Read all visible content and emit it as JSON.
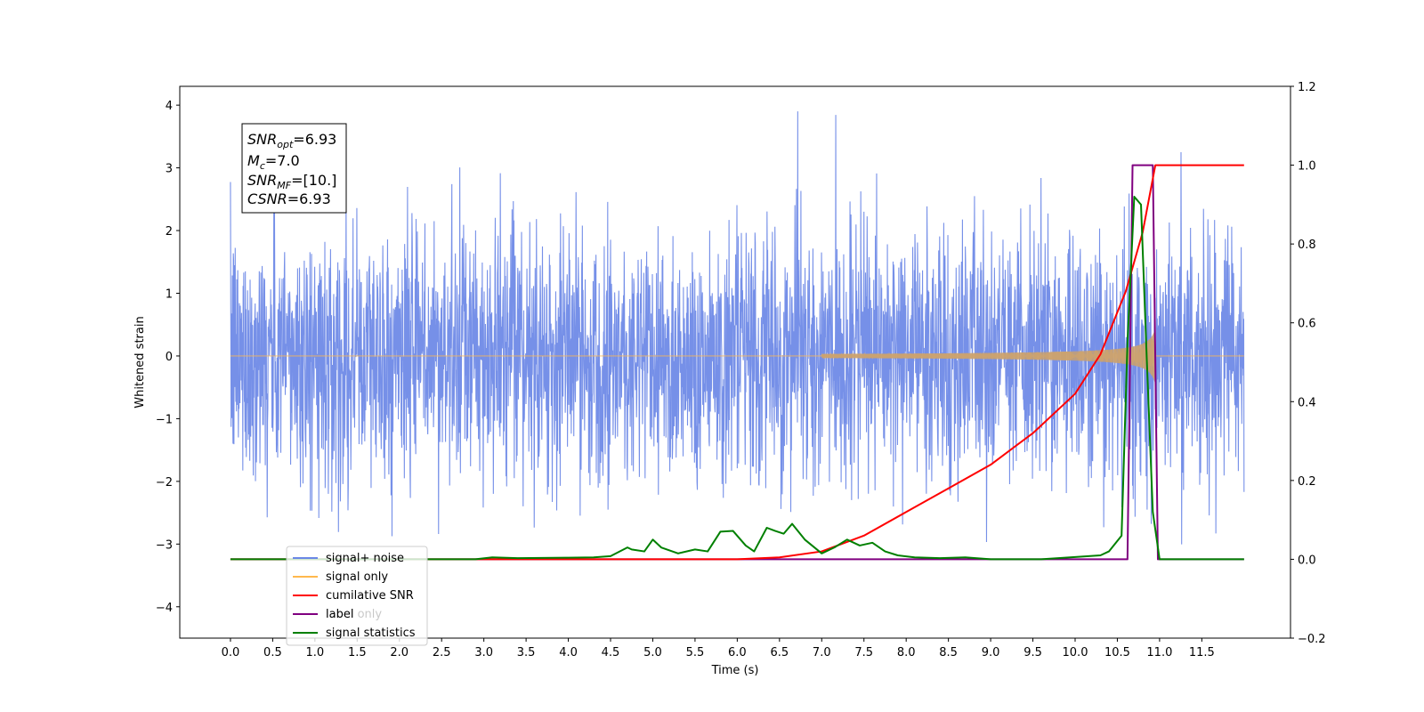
{
  "chart_data": {
    "type": "line",
    "xlabel": "Time (s)",
    "ylabel": "Whitened strain",
    "xlim": [
      -0.6,
      12.55
    ],
    "ylim": [
      -4.5,
      4.3
    ],
    "y2lim": [
      -0.2,
      1.2
    ],
    "x_ticks": [
      "0.0",
      "0.5",
      "1.0",
      "1.5",
      "2.0",
      "2.5",
      "3.0",
      "3.5",
      "4.0",
      "4.5",
      "5.0",
      "5.5",
      "6.0",
      "6.5",
      "7.0",
      "7.5",
      "8.0",
      "8.5",
      "9.0",
      "9.5",
      "10.0",
      "10.5",
      "11.0",
      "11.5"
    ],
    "y_ticks": [
      "4",
      "3",
      "2",
      "1",
      "0",
      "−1",
      "−2",
      "−3",
      "−4"
    ],
    "y2_ticks": [
      "1.2",
      "1.0",
      "0.8",
      "0.6",
      "0.4",
      "0.2",
      "0.0",
      "−0.2"
    ],
    "grid": false,
    "legend_position": "lower-left",
    "info_box": {
      "lines": [
        {
          "sym": "SNR",
          "sub": "opt",
          "value": "=6.93"
        },
        {
          "sym": "M",
          "sub": "c",
          "value": "=7.0"
        },
        {
          "sym": "SNR",
          "sub": "MF",
          "value": "=[10.]"
        },
        {
          "sym": "CSNR",
          "sub": "",
          "value": "=6.93"
        }
      ]
    },
    "series": [
      {
        "name": "signal+ noise",
        "color": "#6a87e6",
        "axis": "left",
        "style": "noise",
        "x_range": [
          0.0,
          12.0
        ],
        "std": 1.0
      },
      {
        "name": "signal only",
        "color": "#ffb84d",
        "axis": "left",
        "style": "chirp",
        "onset": 7.0,
        "merger": 10.95,
        "peak_amplitude": 0.45
      },
      {
        "name": "cumilative SNR",
        "color": "#ff0000",
        "axis": "right",
        "x": [
          0.0,
          6.0,
          6.5,
          7.0,
          7.5,
          8.0,
          8.5,
          9.0,
          9.5,
          10.0,
          10.3,
          10.6,
          10.8,
          10.95,
          11.0,
          12.0
        ],
        "y": [
          0.0,
          0.0,
          0.005,
          0.02,
          0.06,
          0.12,
          0.18,
          0.24,
          0.32,
          0.42,
          0.52,
          0.68,
          0.83,
          1.0,
          1.0,
          1.0
        ]
      },
      {
        "name": "label",
        "color": "#800080",
        "axis": "right",
        "x": [
          0.0,
          10.62,
          10.68,
          10.92,
          10.98,
          12.0
        ],
        "y": [
          0.0,
          0.0,
          1.0,
          1.0,
          0.0,
          0.0
        ]
      },
      {
        "name": "label only",
        "color": "#ffb84d",
        "axis": "right",
        "hidden": true,
        "x": [],
        "y": []
      },
      {
        "name": "signal statistics",
        "color": "#008000",
        "axis": "right",
        "x": [
          0.0,
          2.9,
          3.1,
          3.4,
          4.0,
          4.3,
          4.5,
          4.7,
          4.75,
          4.9,
          5.0,
          5.1,
          5.3,
          5.5,
          5.65,
          5.8,
          5.95,
          6.1,
          6.2,
          6.35,
          6.45,
          6.55,
          6.65,
          6.8,
          7.0,
          7.15,
          7.3,
          7.45,
          7.6,
          7.75,
          7.9,
          8.1,
          8.4,
          8.7,
          9.0,
          9.6,
          10.3,
          10.4,
          10.55,
          10.62,
          10.7,
          10.78,
          10.85,
          10.92,
          11.0,
          12.0
        ],
        "y": [
          0.0,
          0.0,
          0.005,
          0.003,
          0.004,
          0.005,
          0.008,
          0.03,
          0.025,
          0.02,
          0.05,
          0.03,
          0.015,
          0.025,
          0.02,
          0.07,
          0.072,
          0.035,
          0.02,
          0.08,
          0.072,
          0.065,
          0.09,
          0.05,
          0.015,
          0.03,
          0.05,
          0.035,
          0.042,
          0.02,
          0.01,
          0.005,
          0.003,
          0.005,
          0.0,
          0.0,
          0.01,
          0.02,
          0.06,
          0.55,
          0.92,
          0.9,
          0.5,
          0.12,
          0.0,
          0.0
        ]
      }
    ]
  }
}
